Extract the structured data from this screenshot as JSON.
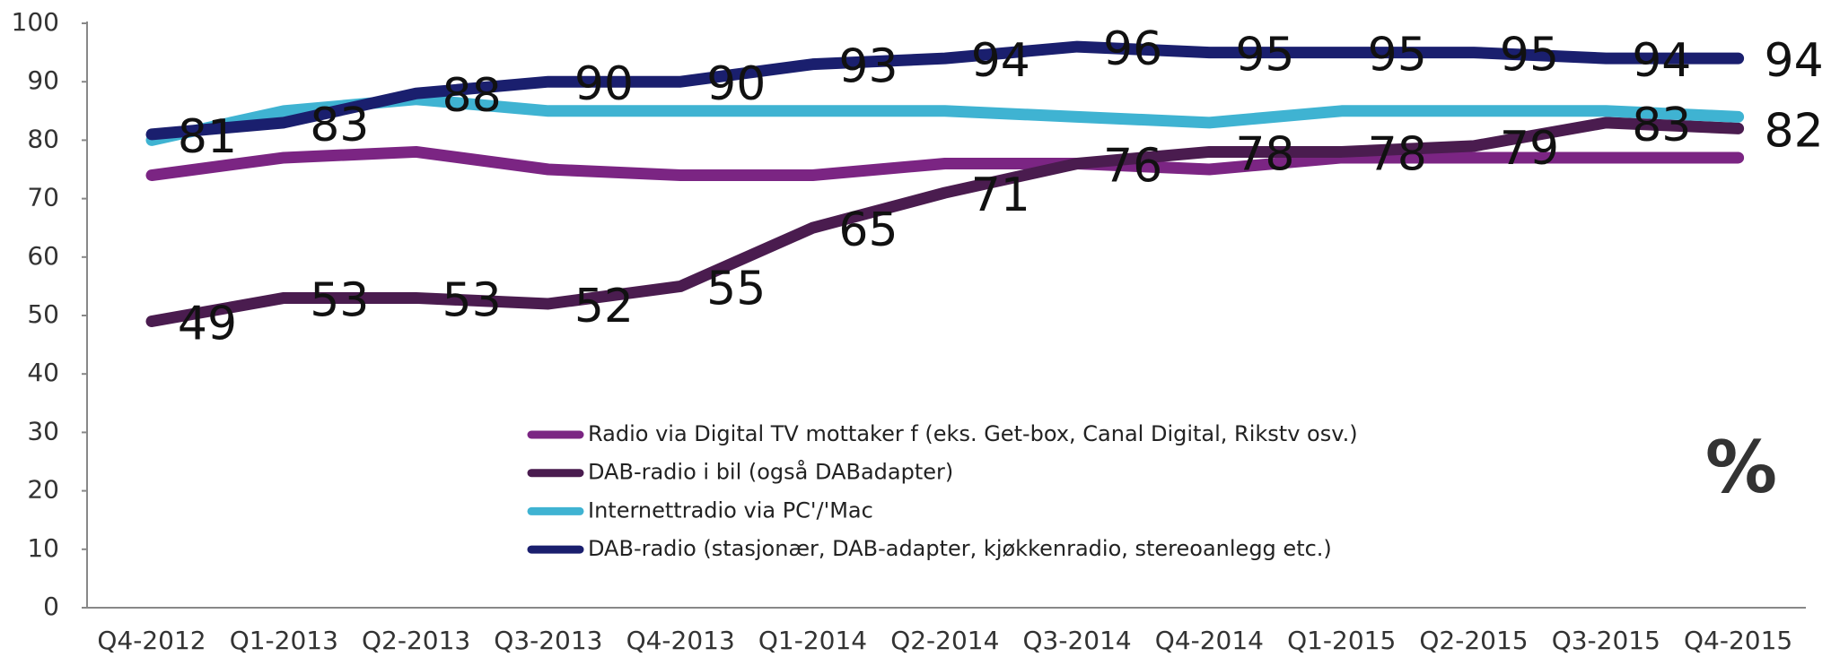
{
  "chart_data": {
    "type": "line",
    "categories": [
      "Q4-2012",
      "Q1-2013",
      "Q2-2013",
      "Q3-2013",
      "Q4-2013",
      "Q1-2014",
      "Q2-2014",
      "Q3-2014",
      "Q4-2014",
      "Q1-2015",
      "Q2-2015",
      "Q3-2015",
      "Q4-2015"
    ],
    "series": [
      {
        "name": "Radio via Digital TV mottaker f (eks. Get-box, Canal Digital, Rikstv osv.)",
        "color": "#7b2583",
        "data_labels": false,
        "values": [
          74,
          77,
          78,
          75,
          74,
          74,
          76,
          76,
          75,
          77,
          77,
          77,
          77
        ]
      },
      {
        "name": "DAB-radio i bil (også DABadapter)",
        "color": "#4a1c4f",
        "data_labels": true,
        "values": [
          49,
          53,
          53,
          52,
          55,
          65,
          71,
          76,
          78,
          78,
          79,
          83,
          82
        ]
      },
      {
        "name": "Internettradio via PC'/'Mac",
        "color": "#3fb3d2",
        "data_labels": false,
        "values": [
          80,
          85,
          87,
          85,
          85,
          85,
          85,
          84,
          83,
          85,
          85,
          85,
          84
        ]
      },
      {
        "name": "DAB-radio (stasjonær, DAB-adapter, kjøkkenradio, stereoanlegg etc.)",
        "color": "#1a1f6e",
        "data_labels": true,
        "values": [
          81,
          83,
          88,
          90,
          90,
          93,
          94,
          96,
          95,
          95,
          95,
          94,
          94
        ]
      }
    ],
    "unit_label": "%",
    "ylim": [
      0,
      100
    ],
    "yticks": [
      0,
      10,
      20,
      30,
      40,
      50,
      60,
      70,
      80,
      90,
      100
    ],
    "grid": false,
    "legend": "lower center"
  }
}
